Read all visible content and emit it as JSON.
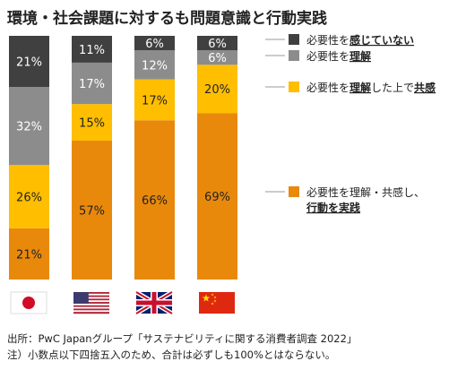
{
  "title": "環境・社会課題に対するも問題意識と行動実践",
  "chart_data": {
    "type": "bar",
    "stacked": true,
    "categories": [
      "日本",
      "アメリカ",
      "イギリス",
      "中国"
    ],
    "series": [
      {
        "name": "必要性を理解・共感し、行動を実践",
        "values": [
          21,
          57,
          66,
          69
        ],
        "labels": [
          "21%",
          "57%",
          "66%",
          "69%"
        ],
        "color": "#E8890C",
        "label_color": "#222222"
      },
      {
        "name": "必要性を理解した上で共感",
        "values": [
          26,
          15,
          17,
          20
        ],
        "labels": [
          "26%",
          "15%",
          "17%",
          "20%"
        ],
        "color": "#FFBE00",
        "label_color": "#222222"
      },
      {
        "name": "必要性を理解",
        "values": [
          32,
          17,
          12,
          6
        ],
        "labels": [
          "32%",
          "17%",
          "12%",
          "6%"
        ],
        "color": "#8C8C8C",
        "label_color": "#ffffff"
      },
      {
        "name": "必要性を感じていない",
        "values": [
          21,
          11,
          6,
          6
        ],
        "labels": [
          "21%",
          "11%",
          "6%",
          "6%"
        ],
        "color": "#404040",
        "label_color": "#ffffff"
      }
    ],
    "flags": [
      "jp",
      "us",
      "gb",
      "cn"
    ]
  },
  "legend": [
    {
      "swatch_color": "#404040",
      "text_plain": "必要性を",
      "text_emph": "感じていない",
      "text_tail": ""
    },
    {
      "swatch_color": "#8C8C8C",
      "text_plain": "必要性を",
      "text_emph": "理解",
      "text_tail": ""
    },
    {
      "swatch_color": "#FFBE00",
      "text_plain": "必要性を",
      "text_emph": "理解",
      "text_tail": "した上で",
      "text_emph2": "共感"
    },
    {
      "swatch_color": "#E8890C",
      "text_plain": "必要性を理解・共感し、",
      "text_emph": "",
      "text_tail": "",
      "line2_emph": "行動を実践"
    }
  ],
  "footnotes": [
    "出所：PwC Japanグループ「サステナビリティに関する消費者調査 2022」",
    "注）小数点以下四捨五入のため、合計は必ずしも100%とはならない。"
  ]
}
